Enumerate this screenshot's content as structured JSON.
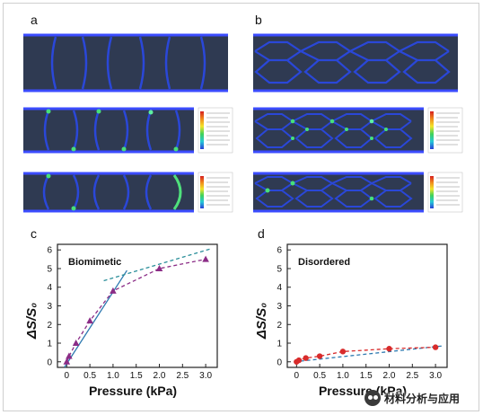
{
  "panels": {
    "a": {
      "label": "a"
    },
    "b": {
      "label": "b"
    },
    "c": {
      "label": "c"
    },
    "d": {
      "label": "d"
    }
  },
  "colors": {
    "fem_bg": "#2f3a52",
    "fem_edge": "#3b4cff",
    "fem_strut": "#2a47d8",
    "purple": "#8b2c86",
    "red": "#d82b2b",
    "blue_fit": "#2d79b0",
    "teal_fit": "#2b8f9a"
  },
  "watermark": {
    "text": "材料分析与应用",
    "icon": "wechat-icon"
  },
  "chart_data": [
    {
      "panel": "c",
      "type": "line",
      "legend_text": "Biomimetic",
      "xlabel": "Pressure (kPa)",
      "ylabel": "ΔS/S₀",
      "xlim": [
        -0.2,
        3.25
      ],
      "ylim": [
        -0.3,
        6.3
      ],
      "xticks": [
        0,
        0.5,
        1.0,
        1.5,
        2.0,
        2.5,
        3.0
      ],
      "xtick_labels": [
        "0",
        "0.5",
        "1.0",
        "1.5",
        "2.0",
        "2.5",
        "3.0"
      ],
      "yticks": [
        0,
        1,
        2,
        3,
        4,
        5,
        6
      ],
      "ytick_labels": [
        "0",
        "1",
        "2",
        "3",
        "4",
        "5",
        "6"
      ],
      "series": [
        {
          "marker": "triangle",
          "color": "#8b2c86",
          "style": "dashed",
          "x": [
            0,
            0.05,
            0.2,
            0.5,
            1.0,
            2.0,
            3.0
          ],
          "y": [
            0,
            0.3,
            1.0,
            2.2,
            3.8,
            5.0,
            5.5
          ]
        }
      ],
      "fits": [
        {
          "color": "#2d79b0",
          "style": "solid",
          "x": [
            -0.05,
            1.3
          ],
          "y": [
            -0.3,
            4.9
          ]
        },
        {
          "color": "#2b8f9a",
          "style": "dashed",
          "x": [
            0.8,
            3.1
          ],
          "y": [
            4.35,
            6.05
          ]
        }
      ]
    },
    {
      "panel": "d",
      "type": "line",
      "legend_text": "Disordered",
      "xlabel": "Pressure (kPa)",
      "ylabel": "ΔS/S₀",
      "xlim": [
        -0.2,
        3.25
      ],
      "ylim": [
        -0.3,
        6.3
      ],
      "xticks": [
        0,
        0.5,
        1.0,
        1.5,
        2.0,
        2.5,
        3.0
      ],
      "xtick_labels": [
        "0",
        "0.5",
        "1.0",
        "1.5",
        "2.0",
        "2.5",
        "3.0"
      ],
      "yticks": [
        0,
        1,
        2,
        3,
        4,
        5,
        6
      ],
      "ytick_labels": [
        "0",
        "1",
        "2",
        "3",
        "4",
        "5",
        "6"
      ],
      "series": [
        {
          "marker": "circle",
          "color": "#d82b2b",
          "style": "dashed",
          "x": [
            0,
            0.05,
            0.2,
            0.5,
            1.0,
            2.0,
            3.0
          ],
          "y": [
            0,
            0.08,
            0.2,
            0.3,
            0.55,
            0.7,
            0.78
          ]
        }
      ],
      "fits": [
        {
          "color": "#2d79b0",
          "style": "dashed",
          "x": [
            -0.05,
            3.15
          ],
          "y": [
            0.0,
            0.85
          ]
        }
      ]
    }
  ]
}
